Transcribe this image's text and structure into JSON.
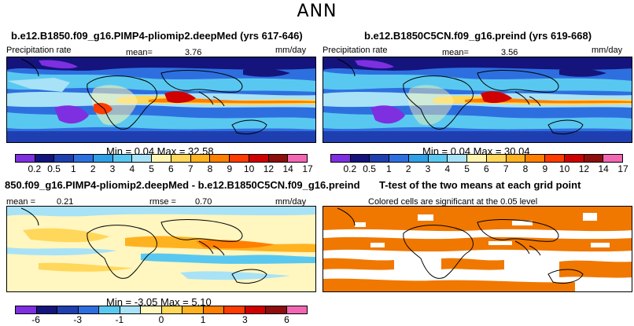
{
  "suptitle": "ANN",
  "panels": {
    "top_left": {
      "title": "b.e12.B1850.f09_g16.PIMP4-pliomip2.deepMed (yrs 617-646)",
      "var_label": "Precipitation rate",
      "mean_label": "mean=",
      "mean_value": "3.76",
      "units": "mm/day",
      "minmax": "Min =    0.04  Max =   32.58"
    },
    "top_right": {
      "title": "b.e12.B1850C5CN.f09_g16.preind (yrs 619-668)",
      "var_label": "Precipitation rate",
      "mean_label": "mean=",
      "mean_value": "3.56",
      "units": "mm/day",
      "minmax": "Min =    0.04  Max =   30.04"
    },
    "bottom_left": {
      "title": "850.f09_g16.PIMP4-pliomip2.deepMed - b.e12.B1850C5CN.f09_g16.preind",
      "mean_label": "mean =",
      "mean_value": "0.21",
      "rmse_label": "rmse =",
      "rmse_value": "0.70",
      "units": "mm/day",
      "minmax": "Min =   -3.05  Max =    5.10"
    },
    "bottom_right": {
      "title": "T-test of the two means at each grid point",
      "subtitle": "Colored cells are significant at the 0.05 level"
    }
  },
  "colorbar_precip": {
    "colors": [
      "#7e2fe0",
      "#14147c",
      "#1f3fb0",
      "#2e6fe0",
      "#2fa0e6",
      "#59c8f0",
      "#a8e2f6",
      "#fff4b0",
      "#ffd75a",
      "#ffb21f",
      "#ff7f00",
      "#ff3c00",
      "#d00000",
      "#8e0d0d",
      "#f266b4"
    ],
    "ticks": [
      "0.2",
      "0.5",
      "1",
      "2",
      "3",
      "4",
      "5",
      "6",
      "7",
      "8",
      "9",
      "10",
      "12",
      "14",
      "17"
    ]
  },
  "colorbar_diff": {
    "colors": [
      "#7e2fe0",
      "#14147c",
      "#1f3fb0",
      "#2e6fe0",
      "#59c8f0",
      "#a8e2f6",
      "#fff6c0",
      "#ffd75a",
      "#ffb21f",
      "#ff7f00",
      "#ff3c00",
      "#d00000",
      "#8e0d0d",
      "#f266b4"
    ],
    "ticks": [
      "-6",
      "-3",
      "-1",
      "0",
      "1",
      "3",
      "6"
    ]
  },
  "colors": {
    "ttest_fill": "#f07800",
    "ocean_base": "#2e6fe0"
  }
}
